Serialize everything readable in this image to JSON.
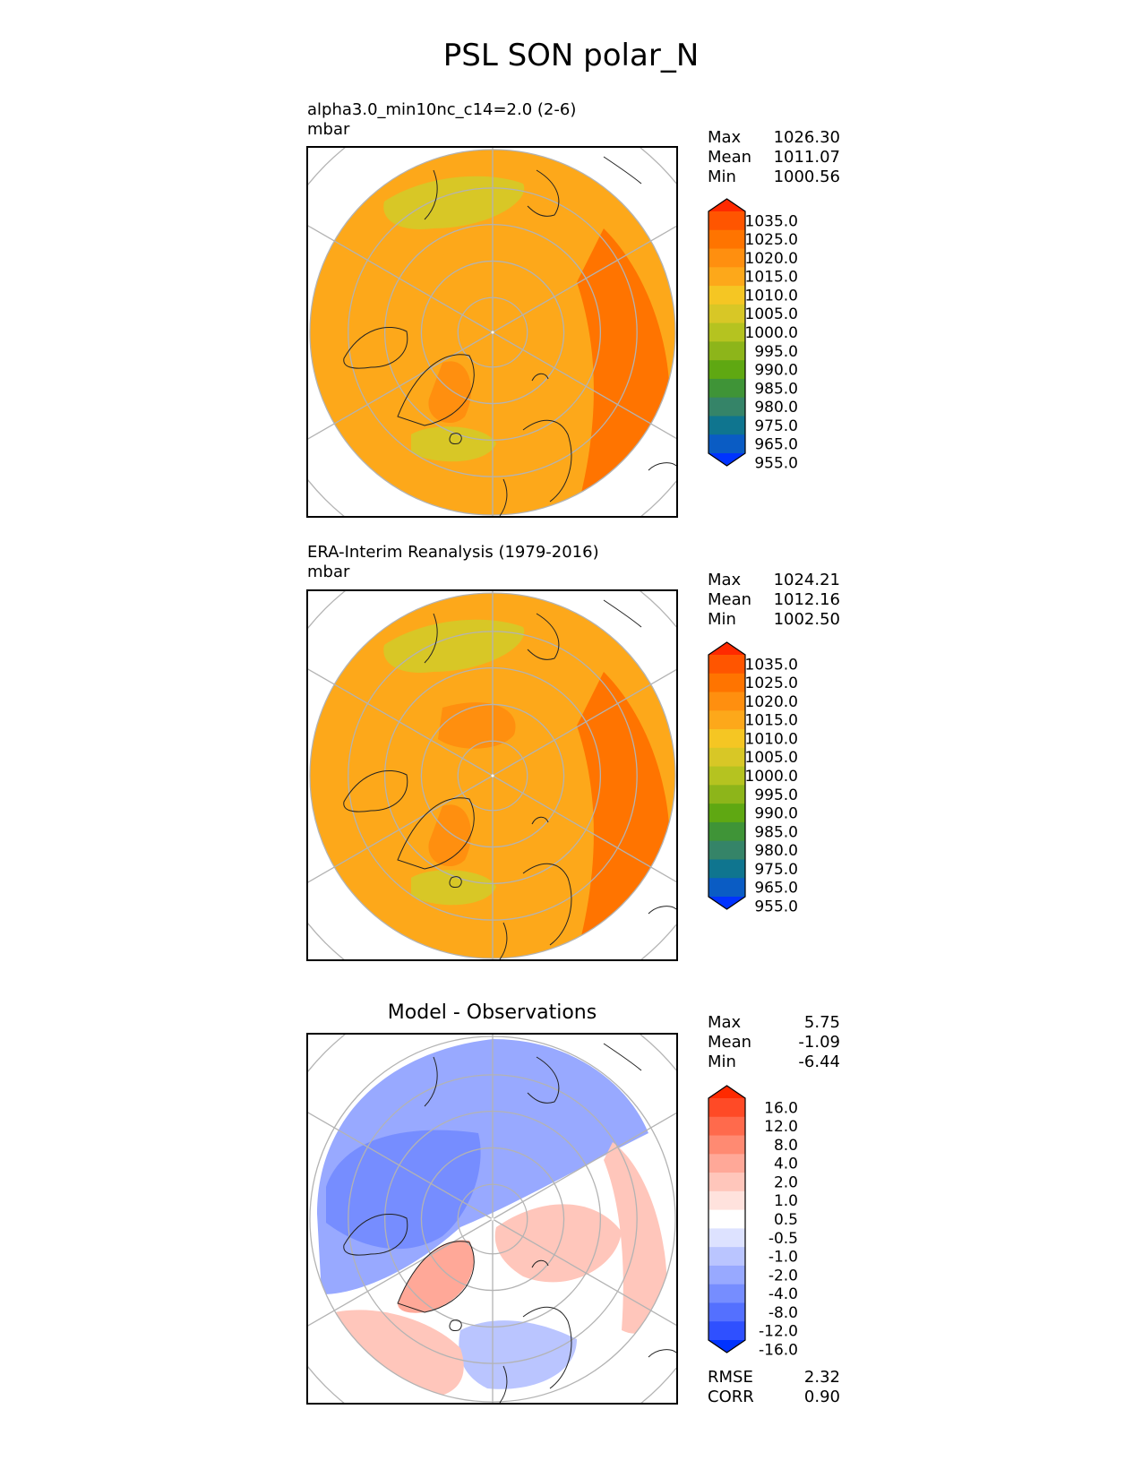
{
  "figure": {
    "title": "PSL SON polar_N"
  },
  "chart_data": [
    {
      "type": "heatmap",
      "projection": "north-polar-stereographic",
      "title": "alpha3.0_min10nc_c14=2.0 (2-6)",
      "units": "mbar",
      "stats": [
        {
          "label": "Max",
          "value": "1026.30"
        },
        {
          "label": "Mean",
          "value": "1011.07"
        },
        {
          "label": "Min",
          "value": "1000.56"
        }
      ],
      "colorbar": {
        "levels": [
          "1035.0",
          "1025.0",
          "1020.0",
          "1015.0",
          "1010.0",
          "1005.0",
          "1000.0",
          "995.0",
          "990.0",
          "985.0",
          "980.0",
          "975.0",
          "965.0",
          "955.0"
        ],
        "colors": [
          "#ff2a00",
          "#ff5500",
          "#ff7400",
          "#ff8f0f",
          "#fda81a",
          "#f5c623",
          "#d8c726",
          "#b5c320",
          "#8db51a",
          "#5fa812",
          "#3f9437",
          "#358468",
          "#0f758f",
          "#0a5cc4",
          "#0033ff"
        ],
        "extend": "both"
      },
      "field_regions": [
        {
          "region": "domain-background",
          "value": 1012.5
        },
        {
          "region": "eurasia-eastern-rim",
          "value": 1022.5
        },
        {
          "region": "greenland-high",
          "value": 1017.5
        },
        {
          "region": "arctic-ocean-central",
          "value": 1012.5
        },
        {
          "region": "icelandic-low",
          "value": 1002.5
        },
        {
          "region": "aleutian-low",
          "value": 1002.5
        }
      ]
    },
    {
      "type": "heatmap",
      "projection": "north-polar-stereographic",
      "title": "ERA-Interim Reanalysis (1979-2016)",
      "units": "mbar",
      "stats": [
        {
          "label": "Max",
          "value": "1024.21"
        },
        {
          "label": "Mean",
          "value": "1012.16"
        },
        {
          "label": "Min",
          "value": "1002.50"
        }
      ],
      "colorbar": {
        "levels": [
          "1035.0",
          "1025.0",
          "1020.0",
          "1015.0",
          "1010.0",
          "1005.0",
          "1000.0",
          "995.0",
          "990.0",
          "985.0",
          "980.0",
          "975.0",
          "965.0",
          "955.0"
        ],
        "colors": [
          "#ff2a00",
          "#ff5500",
          "#ff7400",
          "#ff8f0f",
          "#fda81a",
          "#f5c623",
          "#d8c726",
          "#b5c320",
          "#8db51a",
          "#5fa812",
          "#3f9437",
          "#358468",
          "#0f758f",
          "#0a5cc4",
          "#0033ff"
        ],
        "extend": "both"
      },
      "field_regions": [
        {
          "region": "domain-background",
          "value": 1012.5
        },
        {
          "region": "eurasia-eastern-rim",
          "value": 1022.5
        },
        {
          "region": "greenland-high",
          "value": 1017.5
        },
        {
          "region": "beaufort-high",
          "value": 1017.5
        },
        {
          "region": "icelandic-low",
          "value": 1002.5
        },
        {
          "region": "aleutian-low",
          "value": 1002.5
        }
      ]
    },
    {
      "type": "heatmap",
      "projection": "north-polar-stereographic",
      "title": "Model - Observations",
      "units": "",
      "stats": [
        {
          "label": "Max",
          "value": "5.75"
        },
        {
          "label": "Mean",
          "value": "-1.09"
        },
        {
          "label": "Min",
          "value": "-6.44"
        }
      ],
      "metrics": [
        {
          "label": "RMSE",
          "value": "2.32"
        },
        {
          "label": "CORR",
          "value": "0.90"
        }
      ],
      "colorbar": {
        "levels": [
          "16.0",
          "12.0",
          "8.0",
          "4.0",
          "2.0",
          "1.0",
          "0.5",
          "-0.5",
          "-1.0",
          "-2.0",
          "-4.0",
          "-8.0",
          "-12.0",
          "-16.0"
        ],
        "colors": [
          "#ff2a00",
          "#ff4a26",
          "#ff6a4c",
          "#ff8a72",
          "#ffa898",
          "#ffc6bb",
          "#ffe2dd",
          "#ffffff",
          "#dde2ff",
          "#bac5ff",
          "#98a9ff",
          "#768dff",
          "#5470ff",
          "#2f50ff",
          "#0033ff"
        ],
        "extend": "both"
      },
      "field_regions": [
        {
          "region": "north-america-pacific",
          "value": -3.0
        },
        {
          "region": "canadian-archipelago",
          "value": -6.0
        },
        {
          "region": "greenland",
          "value": 3.0
        },
        {
          "region": "siberia-central",
          "value": 1.5
        },
        {
          "region": "europe-scandinavia",
          "value": -1.5
        },
        {
          "region": "north-atlantic",
          "value": 1.5
        },
        {
          "region": "eastern-rim",
          "value": 1.5
        }
      ]
    }
  ]
}
